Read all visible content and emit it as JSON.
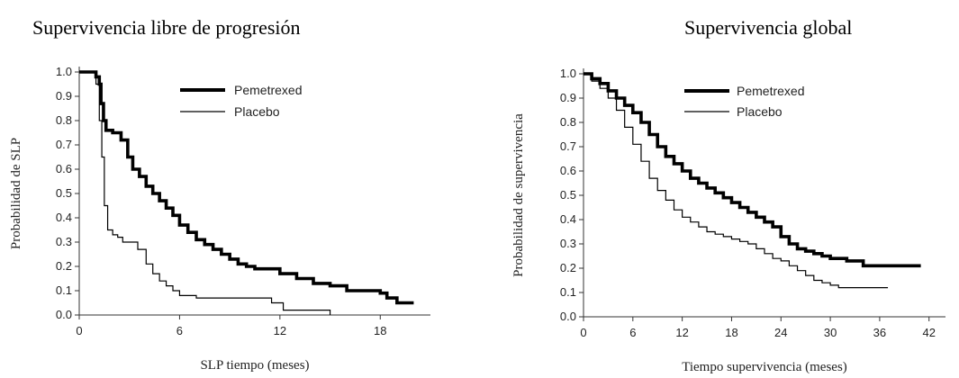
{
  "chart_data": [
    {
      "type": "line",
      "title": "Supervivencia libre de progresión",
      "xlabel": "SLP tiempo (meses)",
      "ylabel": "Probabilidad de SLP",
      "xlim": [
        0,
        21
      ],
      "ylim": [
        0,
        1
      ],
      "xticks": [
        0,
        6,
        12,
        18
      ],
      "yticks": [
        0.0,
        0.1,
        0.2,
        0.3,
        0.4,
        0.5,
        0.6,
        0.7,
        0.8,
        0.9,
        1.0
      ],
      "legend_position": "top-center",
      "series": [
        {
          "name": "Pemetrexed",
          "style": "thick",
          "x": [
            0,
            0.8,
            1.0,
            1.2,
            1.3,
            1.45,
            1.6,
            2.0,
            2.5,
            2.9,
            3.2,
            3.6,
            4.0,
            4.4,
            4.8,
            5.2,
            5.6,
            6.0,
            6.5,
            7.0,
            7.5,
            8.0,
            8.5,
            9.0,
            9.5,
            10.0,
            10.5,
            11.0,
            12.0,
            13.0,
            14.0,
            15.0,
            16.0,
            17.0,
            18.0,
            18.4,
            19.0,
            20.0
          ],
          "y": [
            1.0,
            1.0,
            0.98,
            0.95,
            0.87,
            0.8,
            0.76,
            0.75,
            0.72,
            0.65,
            0.6,
            0.57,
            0.53,
            0.5,
            0.47,
            0.44,
            0.41,
            0.37,
            0.34,
            0.31,
            0.29,
            0.27,
            0.25,
            0.23,
            0.21,
            0.2,
            0.19,
            0.19,
            0.17,
            0.15,
            0.13,
            0.12,
            0.1,
            0.1,
            0.09,
            0.07,
            0.05,
            0.05
          ]
        },
        {
          "name": "Placebo",
          "style": "thin",
          "x": [
            0,
            0.8,
            1.0,
            1.2,
            1.35,
            1.5,
            1.7,
            2.0,
            2.3,
            2.6,
            2.8,
            3.5,
            4.0,
            4.4,
            4.8,
            5.2,
            5.6,
            6.0,
            7.0,
            8.0,
            9.0,
            10.0,
            11.5,
            12.2,
            13.0,
            14.0,
            15.0
          ],
          "y": [
            1.0,
            1.0,
            0.95,
            0.8,
            0.65,
            0.45,
            0.35,
            0.33,
            0.32,
            0.3,
            0.3,
            0.27,
            0.21,
            0.17,
            0.14,
            0.12,
            0.1,
            0.08,
            0.07,
            0.07,
            0.07,
            0.07,
            0.05,
            0.02,
            0.02,
            0.02,
            0.0
          ]
        }
      ]
    },
    {
      "type": "line",
      "title": "Supervivencia global",
      "xlabel": "Tiempo supervivencia (meses)",
      "ylabel": "Probabilidad de supervivencia",
      "xlim": [
        0,
        44
      ],
      "ylim": [
        0,
        1
      ],
      "xticks": [
        0,
        6,
        12,
        18,
        24,
        30,
        36,
        42
      ],
      "yticks": [
        0.0,
        0.1,
        0.2,
        0.3,
        0.4,
        0.5,
        0.6,
        0.7,
        0.8,
        0.9,
        1.0
      ],
      "legend_position": "top-center",
      "series": [
        {
          "name": "Pemetrexed",
          "style": "thick",
          "x": [
            0,
            1,
            2,
            3,
            4,
            5,
            6,
            7,
            8,
            9,
            10,
            11,
            12,
            13,
            14,
            15,
            16,
            17,
            18,
            19,
            20,
            21,
            22,
            23,
            24,
            25,
            26,
            27,
            28,
            29,
            30,
            31,
            32,
            33,
            34,
            35,
            36,
            37,
            38,
            39,
            40,
            41
          ],
          "y": [
            1.0,
            0.98,
            0.96,
            0.93,
            0.9,
            0.87,
            0.84,
            0.8,
            0.75,
            0.7,
            0.66,
            0.63,
            0.6,
            0.57,
            0.55,
            0.53,
            0.51,
            0.49,
            0.47,
            0.45,
            0.43,
            0.41,
            0.39,
            0.37,
            0.33,
            0.3,
            0.28,
            0.27,
            0.26,
            0.25,
            0.24,
            0.24,
            0.23,
            0.23,
            0.21,
            0.21,
            0.21,
            0.21,
            0.21,
            0.21,
            0.21,
            0.21
          ]
        },
        {
          "name": "Placebo",
          "style": "thin",
          "x": [
            0,
            1,
            2,
            3,
            4,
            5,
            6,
            7,
            8,
            9,
            10,
            11,
            12,
            13,
            14,
            15,
            16,
            17,
            18,
            19,
            20,
            21,
            22,
            23,
            24,
            25,
            26,
            27,
            28,
            29,
            30,
            31,
            32,
            33,
            34,
            35,
            36,
            37
          ],
          "y": [
            1.0,
            0.97,
            0.94,
            0.9,
            0.85,
            0.78,
            0.71,
            0.64,
            0.57,
            0.52,
            0.48,
            0.44,
            0.41,
            0.39,
            0.37,
            0.35,
            0.34,
            0.33,
            0.32,
            0.31,
            0.3,
            0.28,
            0.26,
            0.24,
            0.23,
            0.21,
            0.19,
            0.17,
            0.15,
            0.14,
            0.13,
            0.12,
            0.12,
            0.12,
            0.12,
            0.12,
            0.12,
            0.12
          ]
        }
      ]
    }
  ]
}
